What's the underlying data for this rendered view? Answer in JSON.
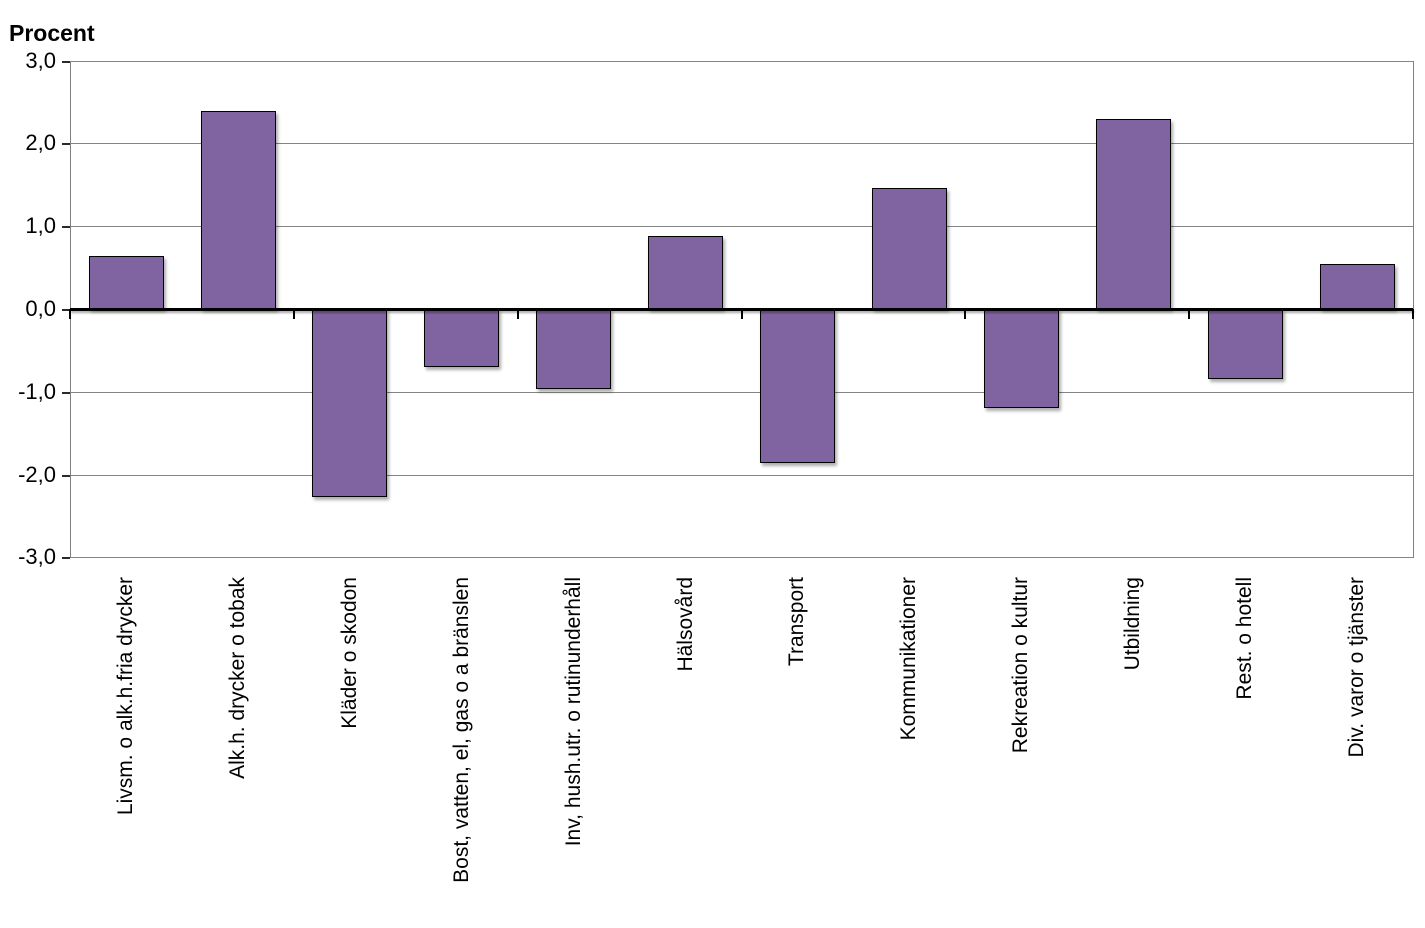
{
  "chart_data": {
    "type": "bar",
    "title": "Procent",
    "ylabel": "Procent",
    "xlabel": "",
    "categories": [
      "Livsm. o alk.h.fria drycker",
      "Alk.h. drycker o tobak",
      "Kläder o skodon",
      "Bost, vatten, el, gas o a bränslen",
      "Inv, hush.utr. o rutinunderhåll",
      "Hälsovård",
      "Transport",
      "Kommunikationer",
      "Rekreation o kultur",
      "Utbildning",
      "Rest. o hotell",
      "Div. varor o tjänster"
    ],
    "values": [
      0.64,
      2.39,
      -2.27,
      -0.7,
      -0.97,
      0.88,
      -1.86,
      1.46,
      -1.2,
      2.3,
      -0.85,
      0.54
    ],
    "ylim": [
      -3.0,
      3.0
    ],
    "y_tick_step": 1.0,
    "y_tick_labels": [
      "3,0",
      "2,0",
      "1,0",
      "0,0",
      "-1,0",
      "-2,0",
      "-3,0"
    ],
    "decimal_separator": ",",
    "grid": true,
    "legend_position": "none",
    "bar_color": "#8064A2",
    "bar_border_color": "#000000",
    "gridline_color": "#848484",
    "axis_line_color": "#808080",
    "zero_line_color": "#000000",
    "text_color": "#000000",
    "background_color": "#FFFFFF"
  }
}
